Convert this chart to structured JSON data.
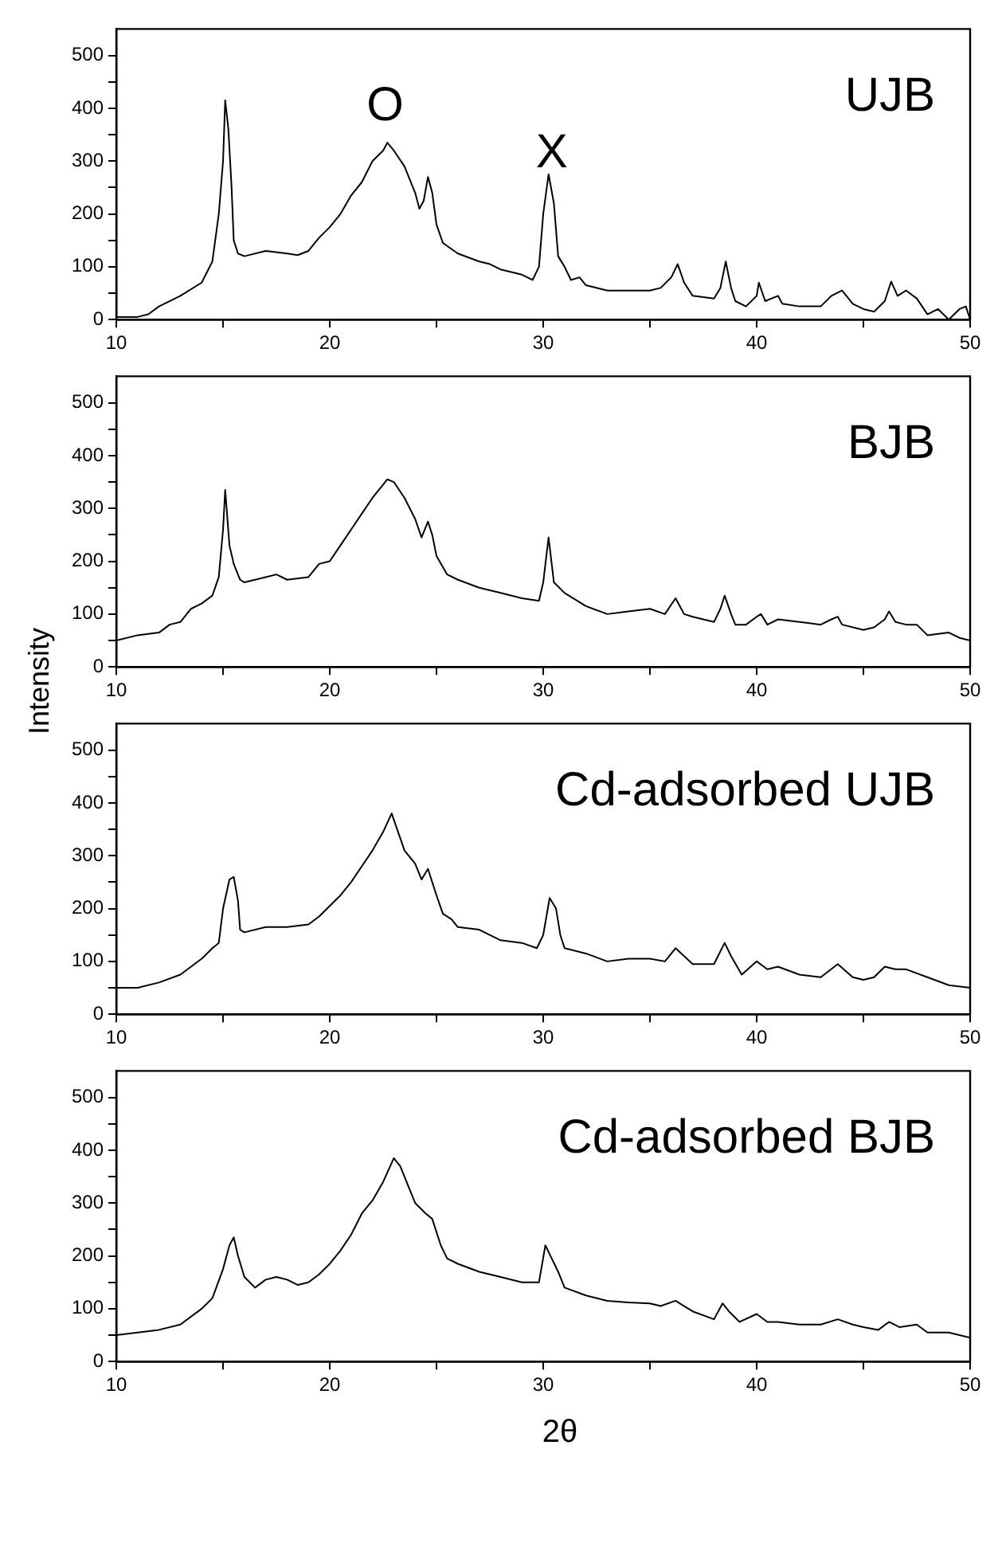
{
  "chart_data": [
    {
      "type": "line",
      "title": "UJB",
      "xlim": [
        10,
        50
      ],
      "xticks": [
        10,
        {
          "value": 15,
          "label": null
        },
        20,
        {
          "value": 25,
          "label": null
        },
        30,
        {
          "value": 35,
          "label": null
        },
        40,
        {
          "value": 45,
          "label": null
        },
        50
      ],
      "ylim": [
        0,
        550
      ],
      "yticks": [
        0,
        {
          "value": 50,
          "label": null
        },
        100,
        {
          "value": 150,
          "label": null
        },
        200,
        {
          "value": 250,
          "label": null
        },
        300,
        {
          "value": 350,
          "label": null
        },
        400,
        {
          "value": 450,
          "label": null
        },
        500
      ],
      "annotations": [
        "O",
        "X"
      ],
      "series": [
        {
          "color": "#000000",
          "x": [
            10,
            11,
            11.5,
            12,
            13,
            14,
            14.5,
            14.8,
            15,
            15.1,
            15.25,
            15.4,
            15.5,
            15.7,
            16,
            17,
            18,
            18.5,
            19,
            19.5,
            20,
            20.5,
            21,
            21.5,
            22,
            22.5,
            22.7,
            23,
            23.5,
            24,
            24.2,
            24.4,
            24.6,
            24.8,
            25,
            25.3,
            26,
            27,
            27.5,
            28,
            28.5,
            29,
            29.5,
            29.8,
            30,
            30.25,
            30.5,
            30.7,
            31,
            31.3,
            31.7,
            32,
            33,
            34,
            35,
            35.5,
            36,
            36.3,
            36.6,
            37,
            38,
            38.3,
            38.55,
            38.8,
            39,
            39.5,
            40,
            40.1,
            40.4,
            41,
            41.2,
            42,
            43,
            43.5,
            44,
            44.5,
            45,
            45.5,
            46,
            46.3,
            46.6,
            47,
            47.5,
            48,
            48.5,
            49,
            49.5,
            49.8,
            50
          ],
          "values": [
            5,
            5,
            10,
            25,
            45,
            70,
            110,
            200,
            300,
            415,
            360,
            250,
            150,
            125,
            120,
            130,
            125,
            122,
            130,
            155,
            175,
            200,
            235,
            260,
            300,
            320,
            335,
            320,
            290,
            240,
            210,
            225,
            270,
            240,
            180,
            145,
            125,
            110,
            105,
            95,
            90,
            85,
            75,
            100,
            200,
            275,
            220,
            120,
            100,
            75,
            80,
            65,
            55,
            55,
            55,
            60,
            80,
            105,
            70,
            45,
            40,
            60,
            110,
            60,
            35,
            25,
            45,
            70,
            35,
            45,
            30,
            25,
            25,
            45,
            55,
            30,
            20,
            15,
            35,
            72,
            45,
            55,
            40,
            10,
            20,
            0,
            20,
            25,
            0
          ]
        }
      ]
    },
    {
      "type": "line",
      "title": "BJB",
      "ylabel": "Intensity",
      "xlim": [
        10,
        50
      ],
      "xticks": [
        10,
        {
          "value": 15,
          "label": null
        },
        20,
        {
          "value": 25,
          "label": null
        },
        30,
        {
          "value": 35,
          "label": null
        },
        40,
        {
          "value": 45,
          "label": null
        },
        50
      ],
      "ylim": [
        0,
        550
      ],
      "yticks": [
        0,
        {
          "value": 50,
          "label": null
        },
        100,
        {
          "value": 150,
          "label": null
        },
        200,
        {
          "value": 250,
          "label": null
        },
        300,
        {
          "value": 350,
          "label": null
        },
        400,
        {
          "value": 450,
          "label": null
        },
        500
      ],
      "series": [
        {
          "color": "#000000",
          "x": [
            10,
            11,
            12,
            12.5,
            13,
            13.5,
            14,
            14.5,
            14.8,
            15,
            15.1,
            15.3,
            15.5,
            15.8,
            16,
            17,
            17.5,
            18,
            19,
            19.5,
            20,
            20.5,
            21,
            21.5,
            22,
            22.5,
            22.7,
            23,
            23.5,
            24,
            24.3,
            24.6,
            24.8,
            25,
            25.5,
            26,
            27,
            28,
            29,
            29.8,
            30,
            30.25,
            30.5,
            31,
            32,
            33,
            34,
            35,
            35.7,
            36.2,
            36.6,
            37,
            37.5,
            38,
            38.3,
            38.5,
            38.8,
            39,
            39.5,
            40,
            40.2,
            40.5,
            41,
            42,
            43,
            43.5,
            43.8,
            44,
            45,
            45.5,
            46,
            46.2,
            46.5,
            47,
            47.5,
            48,
            49,
            49.5,
            50
          ],
          "values": [
            50,
            60,
            65,
            80,
            85,
            110,
            120,
            135,
            170,
            260,
            335,
            230,
            195,
            165,
            160,
            170,
            175,
            165,
            170,
            195,
            200,
            230,
            260,
            290,
            320,
            345,
            355,
            350,
            320,
            280,
            245,
            275,
            250,
            210,
            175,
            165,
            150,
            140,
            130,
            125,
            160,
            245,
            160,
            140,
            115,
            100,
            105,
            110,
            100,
            130,
            100,
            95,
            90,
            85,
            110,
            135,
            100,
            80,
            80,
            95,
            100,
            80,
            90,
            85,
            80,
            90,
            95,
            80,
            70,
            75,
            90,
            105,
            85,
            80,
            80,
            60,
            65,
            55,
            50
          ]
        }
      ]
    },
    {
      "type": "line",
      "title": "Cd-adsorbed UJB",
      "xlim": [
        10,
        50
      ],
      "xticks": [
        10,
        {
          "value": 15,
          "label": null
        },
        20,
        {
          "value": 25,
          "label": null
        },
        30,
        {
          "value": 35,
          "label": null
        },
        40,
        {
          "value": 45,
          "label": null
        },
        50
      ],
      "ylim": [
        0,
        550
      ],
      "yticks": [
        0,
        {
          "value": 50,
          "label": null
        },
        100,
        {
          "value": 150,
          "label": null
        },
        200,
        {
          "value": 250,
          "label": null
        },
        300,
        {
          "value": 350,
          "label": null
        },
        400,
        {
          "value": 450,
          "label": null
        },
        500
      ],
      "series": [
        {
          "color": "#000000",
          "x": [
            10,
            11,
            12,
            13,
            14,
            14.5,
            14.8,
            15,
            15.3,
            15.5,
            15.7,
            15.8,
            16,
            17,
            18,
            19,
            19.5,
            20,
            20.5,
            21,
            21.5,
            22,
            22.5,
            22.9,
            23.2,
            23.5,
            24,
            24.3,
            24.6,
            25,
            25.3,
            25.7,
            26,
            27,
            28,
            29,
            29.7,
            30,
            30.3,
            30.6,
            30.8,
            31,
            32,
            33,
            34,
            35,
            35.7,
            36.2,
            36.6,
            37,
            38,
            38.5,
            38.8,
            39.3,
            40,
            40.5,
            41,
            42,
            43,
            43.8,
            44.5,
            45,
            45.5,
            46,
            46.5,
            47,
            48,
            49,
            50
          ],
          "values": [
            50,
            50,
            60,
            75,
            105,
            125,
            135,
            200,
            255,
            260,
            215,
            160,
            155,
            165,
            165,
            170,
            185,
            205,
            225,
            250,
            280,
            310,
            345,
            380,
            345,
            310,
            285,
            255,
            275,
            225,
            190,
            180,
            165,
            160,
            140,
            135,
            125,
            150,
            220,
            200,
            150,
            125,
            115,
            100,
            105,
            105,
            100,
            125,
            110,
            95,
            95,
            135,
            110,
            75,
            100,
            85,
            90,
            75,
            70,
            95,
            70,
            65,
            70,
            90,
            85,
            85,
            70,
            55,
            50
          ]
        }
      ]
    },
    {
      "type": "line",
      "title": "Cd-adsorbed BJB",
      "xlabel": "2θ",
      "xlim": [
        10,
        50
      ],
      "xticks": [
        10,
        {
          "value": 15,
          "label": null
        },
        20,
        {
          "value": 25,
          "label": null
        },
        30,
        {
          "value": 35,
          "label": null
        },
        40,
        {
          "value": 45,
          "label": null
        },
        50
      ],
      "ylim": [
        0,
        550
      ],
      "yticks": [
        0,
        {
          "value": 50,
          "label": null
        },
        100,
        {
          "value": 150,
          "label": null
        },
        200,
        {
          "value": 250,
          "label": null
        },
        300,
        {
          "value": 350,
          "label": null
        },
        400,
        {
          "value": 450,
          "label": null
        },
        500
      ],
      "series": [
        {
          "color": "#000000",
          "x": [
            10,
            11,
            12,
            13,
            14,
            14.5,
            15,
            15.3,
            15.5,
            15.7,
            16,
            16.5,
            17,
            17.5,
            18,
            18.5,
            19,
            19.5,
            20,
            20.5,
            21,
            21.5,
            22,
            22.5,
            23,
            23.3,
            23.7,
            24,
            24.5,
            24.8,
            25.2,
            25.5,
            26,
            27,
            28,
            29,
            29.8,
            30.1,
            30.4,
            30.7,
            31,
            32,
            33,
            34,
            35,
            35.5,
            36.2,
            36.6,
            37,
            38,
            38.4,
            38.7,
            39.2,
            40,
            40.5,
            41,
            42,
            43,
            43.8,
            44.5,
            45,
            45.7,
            46.2,
            46.7,
            47.5,
            48,
            49,
            50
          ],
          "values": [
            50,
            55,
            60,
            70,
            100,
            120,
            175,
            220,
            235,
            200,
            160,
            140,
            155,
            160,
            155,
            145,
            150,
            165,
            185,
            210,
            240,
            280,
            305,
            340,
            385,
            370,
            330,
            300,
            280,
            270,
            220,
            195,
            185,
            170,
            160,
            150,
            150,
            220,
            195,
            170,
            140,
            125,
            115,
            112,
            110,
            105,
            115,
            105,
            95,
            80,
            110,
            95,
            75,
            90,
            75,
            75,
            70,
            70,
            80,
            70,
            65,
            60,
            75,
            65,
            70,
            55,
            55,
            45
          ]
        }
      ]
    }
  ]
}
